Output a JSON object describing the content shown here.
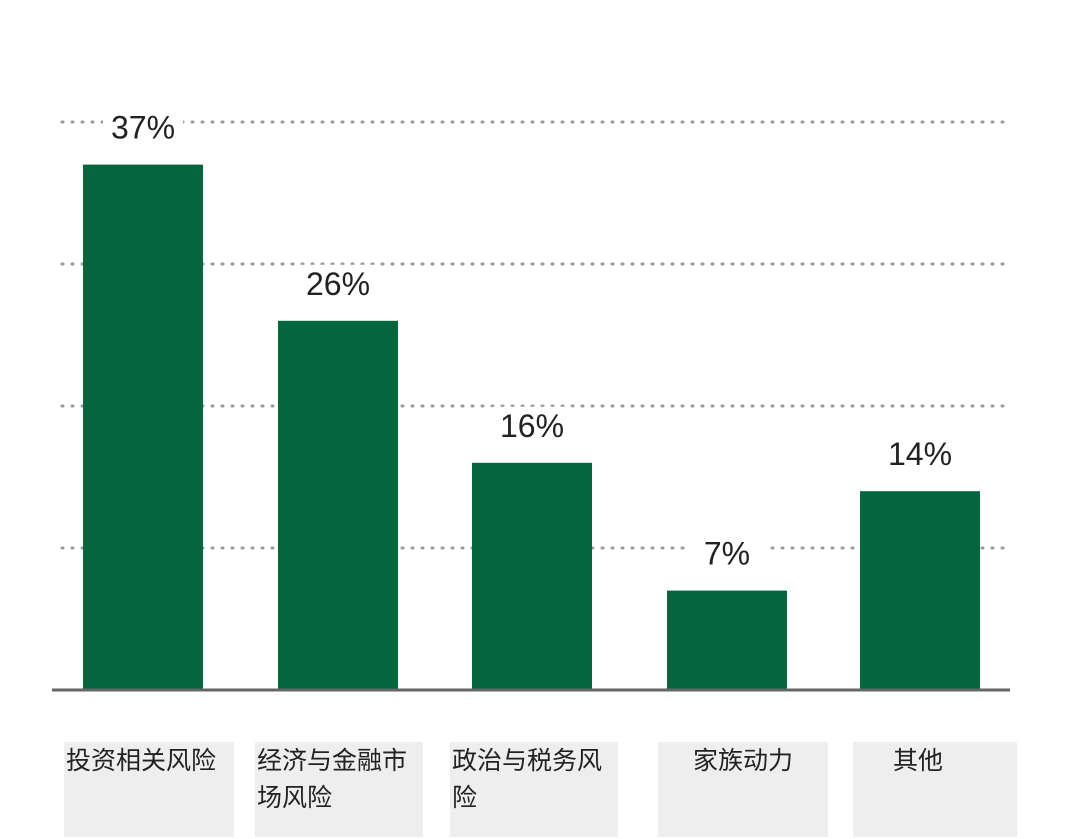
{
  "chart_data": {
    "type": "bar",
    "categories": [
      "投资相关风险",
      "经济与金融市场风险",
      "政治与税务风险",
      "家族动力",
      "其他"
    ],
    "values": [
      37,
      26,
      16,
      7,
      14
    ],
    "value_labels": [
      "37%",
      "26%",
      "16%",
      "7%",
      "14%"
    ],
    "title": "",
    "xlabel": "",
    "ylabel": "",
    "ylim": [
      0,
      40
    ],
    "grid": true,
    "gridlines": [
      10,
      20,
      30,
      40
    ],
    "legend": "none",
    "colors": {
      "bar": "#04663c",
      "baseline": "#666666",
      "grid": "#9a9a9a",
      "label_box": "#eeeeee",
      "text": "#222222"
    }
  }
}
